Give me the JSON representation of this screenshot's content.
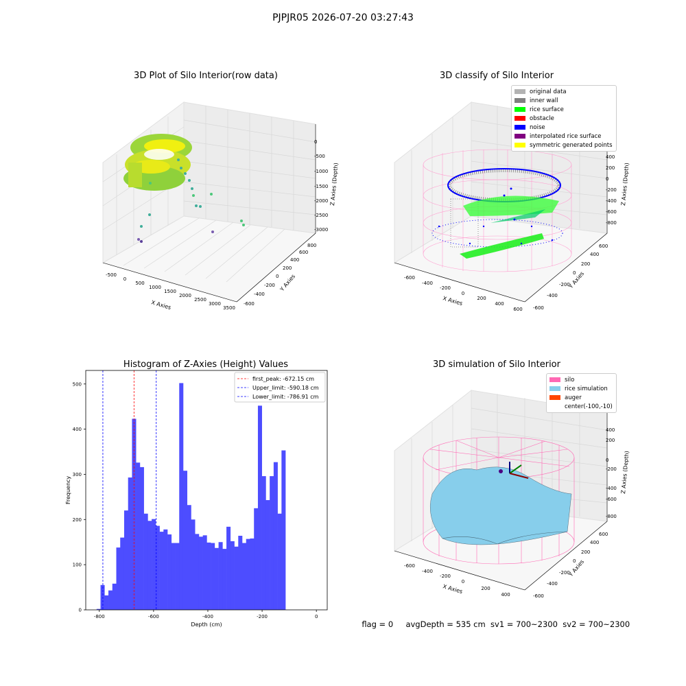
{
  "suptitle": "PJPJR05 2026-07-20 03:27:43",
  "panels": {
    "raw": {
      "title": "3D Plot of Silo Interior(row data)",
      "xlabel": "X Axies",
      "ylabel": "Y Axies",
      "zlabel": "Z Axies (Depth)",
      "xticks": [
        "-500",
        "0",
        "500",
        "1000",
        "1500",
        "2000",
        "2500",
        "3000",
        "3500"
      ],
      "yticks": [
        "-600",
        "-400",
        "-200",
        "0",
        "200",
        "400",
        "600",
        "800"
      ],
      "zticks": [
        "0",
        "-500",
        "-1000",
        "-1500",
        "-2000",
        "-2500",
        "-3000"
      ]
    },
    "classify": {
      "title": "3D classify of Silo Interior",
      "xlabel": "X Axies",
      "ylabel": "Y Axies",
      "zlabel": "Z Axies (Depth)",
      "xticks": [
        "-600",
        "-400",
        "-200",
        "0",
        "200",
        "400",
        "600"
      ],
      "yticks": [
        "-600",
        "-400",
        "-200",
        "0",
        "200",
        "400",
        "600"
      ],
      "zticks": [
        "400",
        "200",
        "0",
        "-200",
        "-400",
        "-600",
        "-800"
      ],
      "legend": [
        {
          "label": "original data",
          "color": "#b3b3b3"
        },
        {
          "label": "inner wall",
          "color": "#808080"
        },
        {
          "label": "rice surface",
          "color": "#00ff00"
        },
        {
          "label": "obstacle",
          "color": "#ff0000"
        },
        {
          "label": "noise",
          "color": "#0000ff"
        },
        {
          "label": "interpolated rice surface",
          "color": "#800080"
        },
        {
          "label": "symmetric generated points",
          "color": "#ffff00"
        }
      ]
    },
    "simulation": {
      "title": "3D simulation of Silo Interior",
      "xlabel": "X Axies",
      "ylabel": "Y Axies",
      "zlabel": "Z Axies (Depth)",
      "xticks": [
        "-600",
        "-400",
        "-200",
        "0",
        "200",
        "400"
      ],
      "yticks": [
        "-600",
        "-400",
        "-200",
        "0",
        "200",
        "400",
        "600"
      ],
      "zticks": [
        "400",
        "200",
        "0",
        "-200",
        "-400",
        "-600",
        "-800"
      ],
      "legend": [
        {
          "label": "silo",
          "color": "#ff69b4"
        },
        {
          "label": "rice simulation",
          "color": "#87ceeb"
        },
        {
          "label": "auger",
          "color": "#ff4500"
        },
        {
          "label": "center(-100,-10)",
          "color": ""
        }
      ]
    }
  },
  "chart_data": {
    "type": "bar",
    "title": "Histogram of Z-Axies (Height) Values",
    "xlabel": "Depth (cm)",
    "ylabel": "Frequency",
    "xlim": [
      -850,
      40
    ],
    "ylim": [
      0,
      530
    ],
    "xticks": [
      -800,
      -600,
      -400,
      -200,
      0
    ],
    "yticks": [
      0,
      100,
      200,
      300,
      400,
      500
    ],
    "bar_color": "#4d4dff",
    "bin_width": 14.5,
    "bin_start": -810,
    "values": [
      2,
      55,
      32,
      43,
      58,
      138,
      160,
      220,
      293,
      423,
      326,
      316,
      213,
      197,
      201,
      186,
      173,
      178,
      167,
      148,
      148,
      502,
      308,
      232,
      200,
      168,
      162,
      165,
      149,
      148,
      137,
      150,
      135,
      184,
      152,
      140,
      164,
      148,
      157,
      158,
      225,
      452,
      296,
      243,
      296,
      327,
      213,
      353
    ],
    "vlines": [
      {
        "label": "first_peak: -672.15 cm",
        "x": -672.15,
        "color": "#ff0000"
      },
      {
        "label": "Upper_limit: -590.18 cm",
        "x": -590.18,
        "color": "#0000ff"
      },
      {
        "label": "Lower_limit: -786.91 cm",
        "x": -786.91,
        "color": "#0000ff"
      }
    ]
  },
  "footer": {
    "flag": "flag = 0",
    "avg": "avgDepth = 535 cm",
    "sv1": "sv1 = 700~2300",
    "sv2": "sv2 = 700~2300"
  }
}
